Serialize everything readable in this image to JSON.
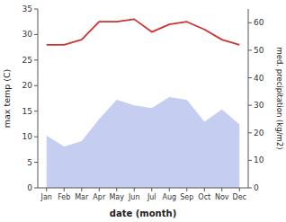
{
  "chart_data": {
    "type": "line",
    "xlabel": "date (month)",
    "ylabel": "max temp (C)",
    "y2label": "med. precipitation (kg/m2)",
    "categories": [
      "Jan",
      "Feb",
      "Mar",
      "Apr",
      "May",
      "Jun",
      "Jul",
      "Aug",
      "Sep",
      "Oct",
      "Nov",
      "Dec"
    ],
    "series": [
      {
        "type": "area",
        "axis": "y2",
        "color": "#c5cdf0",
        "values": [
          19,
          15,
          17,
          25,
          32,
          30,
          29,
          33,
          32,
          24,
          28.5,
          23
        ]
      },
      {
        "type": "line",
        "color": "#cc3333",
        "values": [
          28,
          28,
          29,
          32.5,
          32.5,
          33,
          30.5,
          32,
          32.5,
          31,
          29,
          28
        ]
      }
    ],
    "ylim": [
      0,
      35
    ],
    "yticks": [
      0,
      5,
      10,
      15,
      20,
      25,
      30,
      35
    ],
    "y2lim": [
      0,
      65
    ],
    "y2ticks": [
      0,
      10,
      20,
      30,
      40,
      50,
      60
    ],
    "grid": false
  }
}
